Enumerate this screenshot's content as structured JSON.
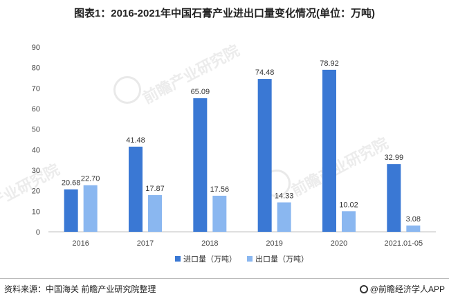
{
  "title": "图表1：2016-2021年中国石膏产业进出口量变化情况(单位：万吨)",
  "watermark": "前瞻产业研究院",
  "source": "资料来源：中国海关 前瞻产业研究院整理",
  "brand": "@前瞻经济学人APP",
  "colors": {
    "import": "#3a78d4",
    "export": "#8ab7f0",
    "axis": "#bfbfbf"
  },
  "chart_data": {
    "type": "bar",
    "categories": [
      "2016",
      "2017",
      "2018",
      "2019",
      "2020",
      "2021.01-05"
    ],
    "series": [
      {
        "name": "进口量（万吨）",
        "values": [
          20.68,
          41.48,
          65.09,
          74.48,
          78.92,
          32.99
        ]
      },
      {
        "name": "出口量（万吨）",
        "values": [
          22.7,
          17.87,
          17.56,
          14.33,
          10.02,
          3.08
        ]
      }
    ],
    "yticks": [
      "0",
      "10",
      "20",
      "30",
      "40",
      "50",
      "60",
      "70",
      "80",
      "90"
    ],
    "ylim": [
      0,
      90
    ],
    "legend": "bottom",
    "grid": false
  }
}
